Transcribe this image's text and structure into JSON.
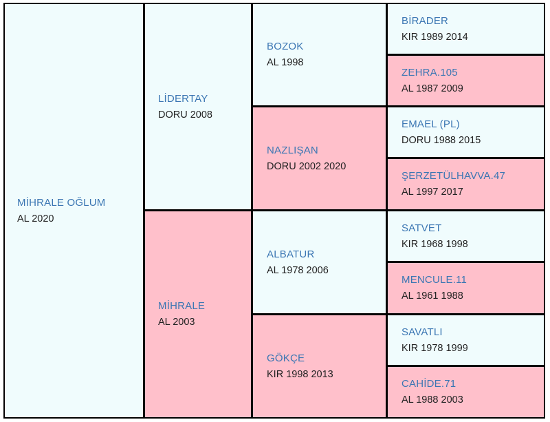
{
  "subject": {
    "name": "MİHRALE OĞLUM",
    "info": "AL 2020",
    "sex": "male"
  },
  "sire": {
    "name": "LİDERTAY",
    "info": "DORU 2008",
    "sex": "male"
  },
  "dam": {
    "name": "MİHRALE",
    "info": "AL 2003",
    "sex": "female"
  },
  "sire_sire": {
    "name": "BOZOK",
    "info": "AL 1998",
    "sex": "male"
  },
  "sire_dam": {
    "name": "NAZLIŞAN",
    "info": "DORU 2002 2020",
    "sex": "female"
  },
  "dam_sire": {
    "name": "ALBATUR",
    "info": "AL 1978 2006",
    "sex": "male"
  },
  "dam_dam": {
    "name": "GÖKÇE",
    "info": "KIR 1998 2013",
    "sex": "female"
  },
  "gen4": [
    {
      "name": "BİRADER",
      "info": "KIR 1989 2014",
      "sex": "male"
    },
    {
      "name": "ZEHRA.105",
      "info": "AL 1987 2009",
      "sex": "female"
    },
    {
      "name": "EMAEL (PL)",
      "info": "DORU 1988 2015",
      "sex": "male"
    },
    {
      "name": "ŞERZETÜLHAVVA.47",
      "info": "AL 1997 2017",
      "sex": "female"
    },
    {
      "name": "SATVET",
      "info": "KIR 1968 1998",
      "sex": "male"
    },
    {
      "name": "MENCULE.11",
      "info": "AL 1961 1988",
      "sex": "female"
    },
    {
      "name": "SAVATLI",
      "info": "KIR 1978 1999",
      "sex": "male"
    },
    {
      "name": "CAHİDE.71",
      "info": "AL 1988 2003",
      "sex": "female"
    }
  ],
  "colors": {
    "male_bg": "#f0fcfd",
    "female_bg": "#ffc0cb",
    "name_text": "#3b76b3",
    "info_text": "#222222",
    "border": "#000000"
  }
}
